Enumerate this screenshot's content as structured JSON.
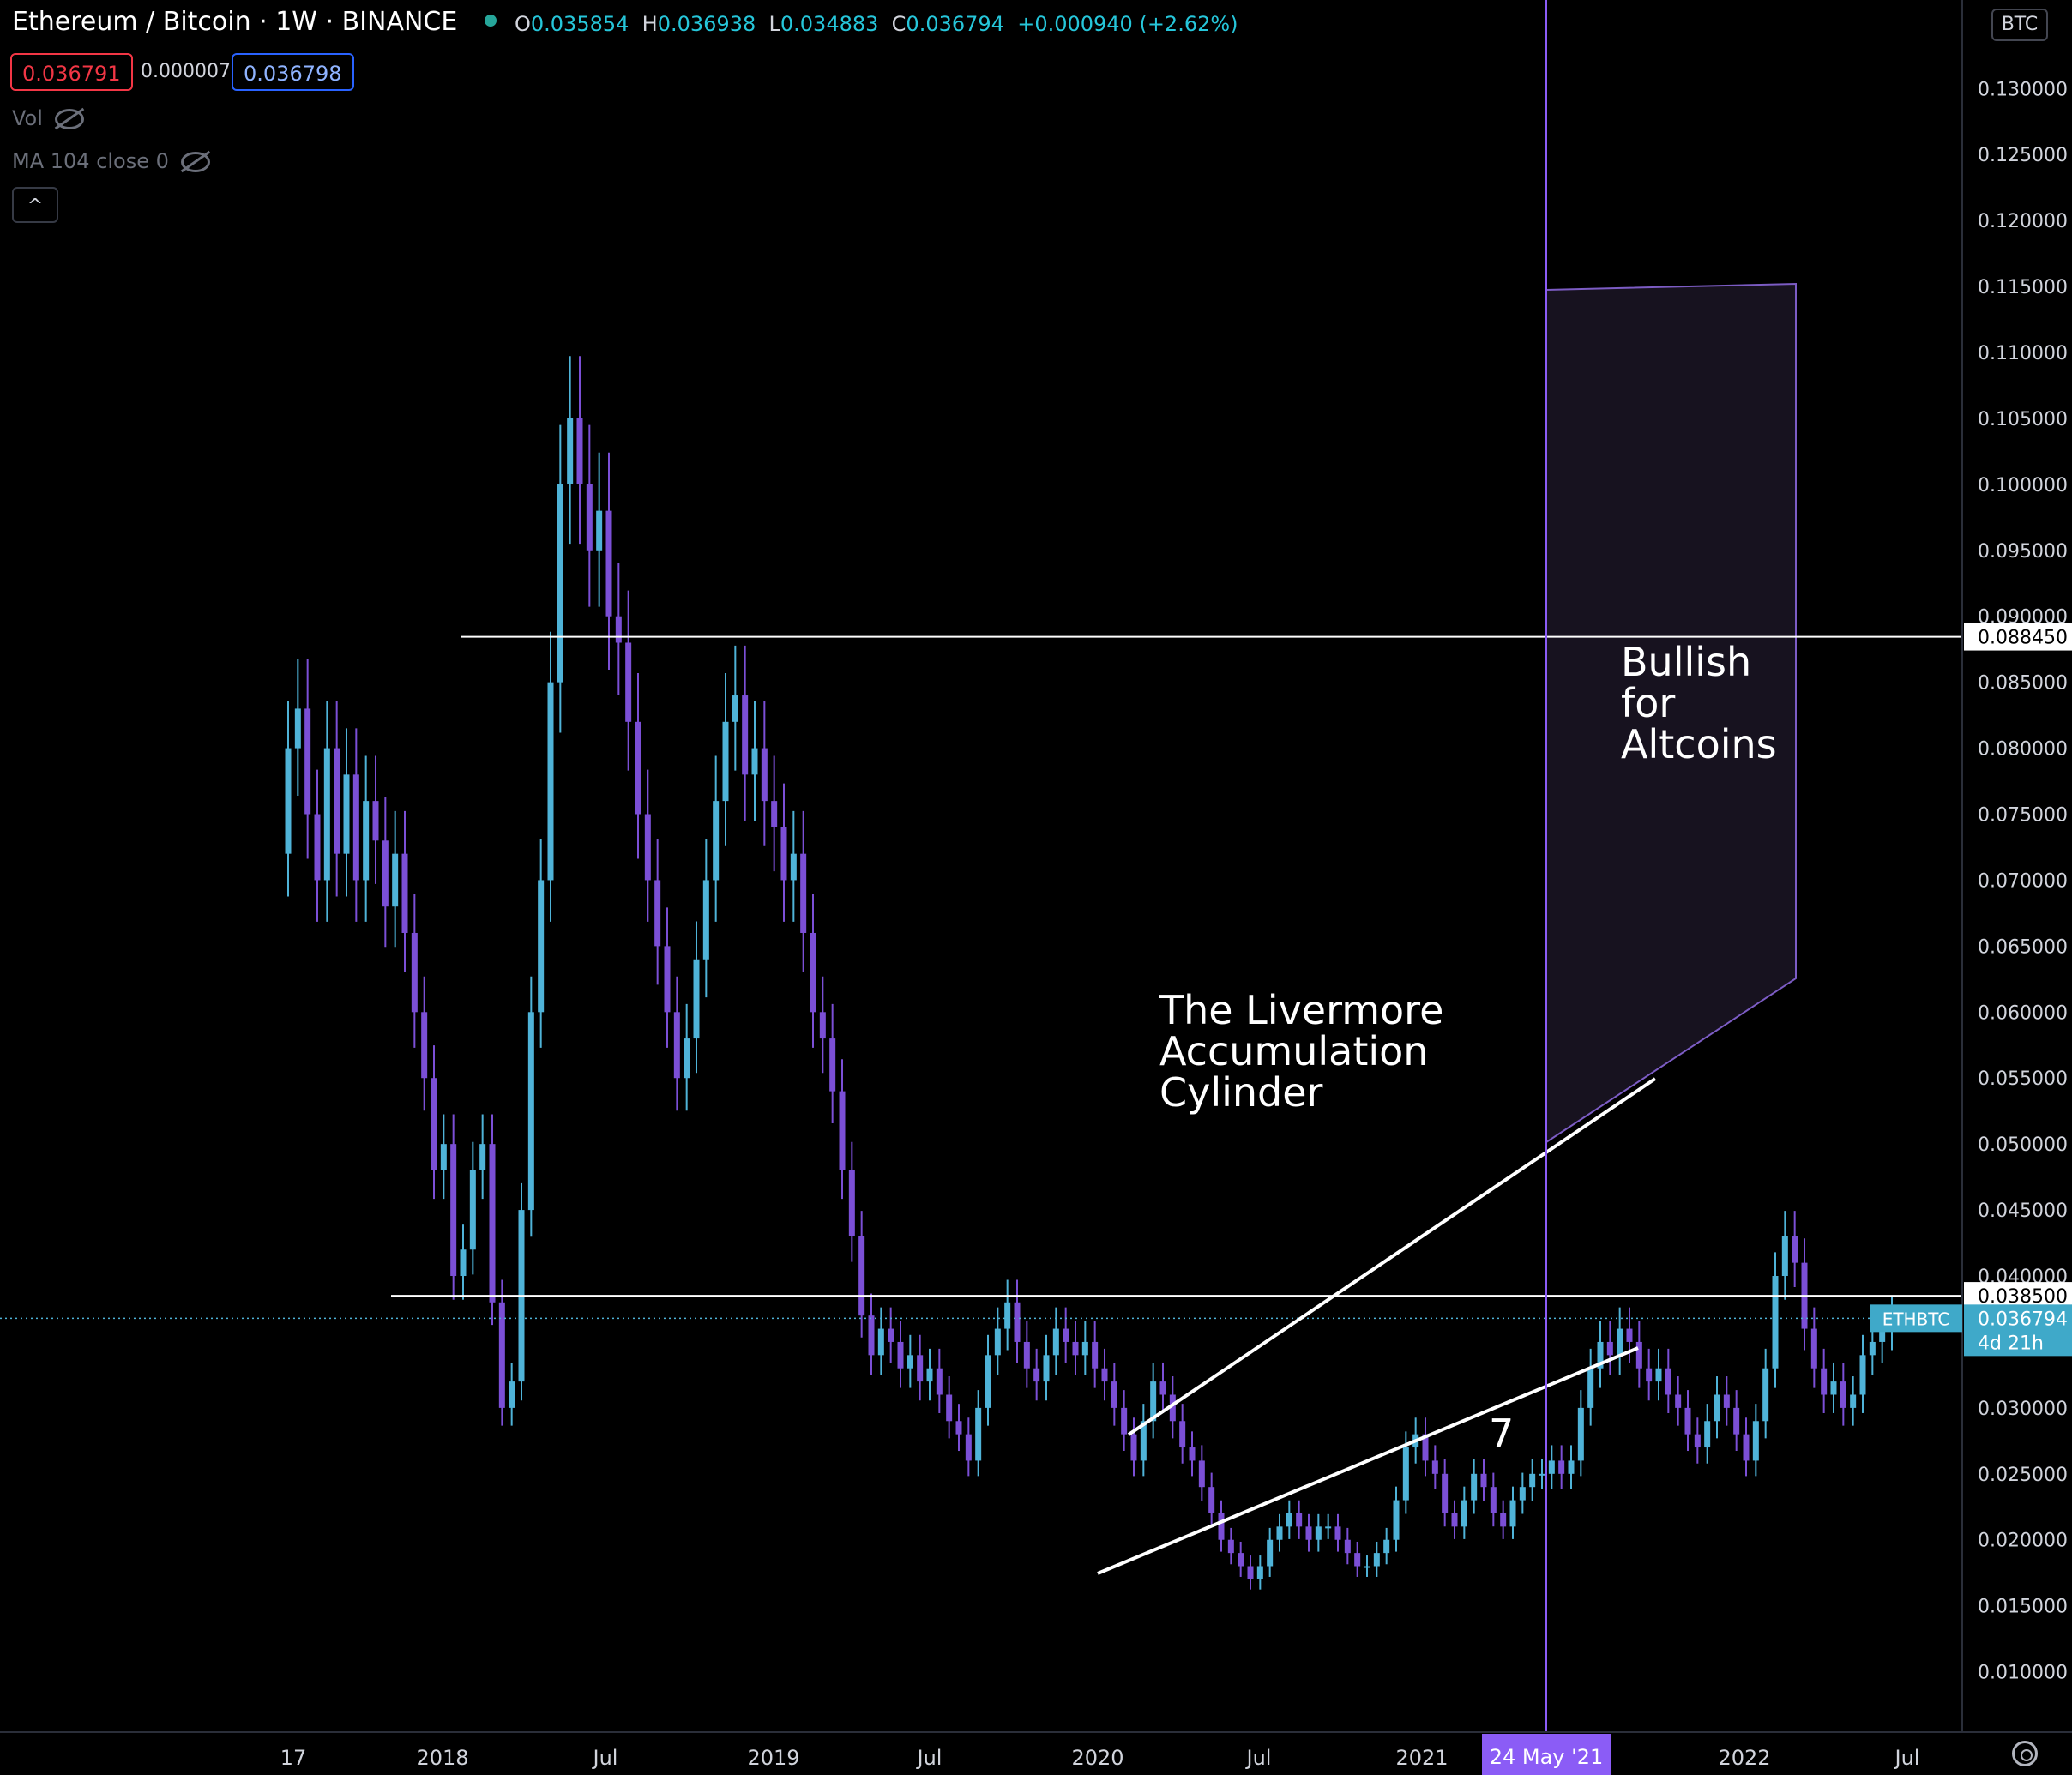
{
  "header": {
    "title": "Ethereum / Bitcoin · 1W · BINANCE",
    "o_label": "O",
    "o_value": "0.035854",
    "h_label": "H",
    "h_value": "0.036938",
    "l_label": "L",
    "l_value": "0.034883",
    "c_label": "C",
    "c_value": "0.036794",
    "change": "+0.000940 (+2.62%)"
  },
  "trade": {
    "sell": "0.036791",
    "spread": "0.000007",
    "buy": "0.036798"
  },
  "indicators": {
    "vol": "Vol",
    "ma": "MA 104 close 0"
  },
  "controls": {
    "collapse": "^",
    "currency": "BTC"
  },
  "annotations": {
    "livermore": [
      "The Livermore",
      "Accumulation",
      "Cylinder"
    ],
    "bullish": [
      "Bullish",
      "for",
      "Altcoins"
    ],
    "count": "7"
  },
  "price_labels": {
    "resistance": "0.088450",
    "support": "0.038500",
    "last": "0.036794",
    "symbol": "ETHBTC",
    "countdown": "4d 21h"
  },
  "colors": {
    "up": "#4fb3d8",
    "down": "#7b4fd6",
    "cursor": "#8b5cf6",
    "projection_fill": "#17121f",
    "projection_stroke": "#7c5cc4"
  },
  "chart_data": {
    "type": "candlestick",
    "title": "Ethereum / Bitcoin · 1W · BINANCE",
    "y_axis": {
      "scale": "linear",
      "range": [
        0.005,
        0.135
      ],
      "ticks": [
        "0.010000",
        "0.015000",
        "0.020000",
        "0.025000",
        "0.030000",
        "0.035000",
        "0.040000",
        "0.045000",
        "0.050000",
        "0.055000",
        "0.060000",
        "0.065000",
        "0.070000",
        "0.075000",
        "0.080000",
        "0.085000",
        "0.090000",
        "0.095000",
        "0.100000",
        "0.105000",
        "0.110000",
        "0.115000",
        "0.120000",
        "0.125000",
        "0.130000"
      ]
    },
    "x_axis": {
      "ticks": [
        "17",
        "2018",
        "Jul",
        "2019",
        "Jul",
        "2020",
        "Jul",
        "2021",
        "Jul",
        "2022",
        "Jul"
      ],
      "cursor_label": "24 May '21"
    },
    "horizontal_levels": [
      0.08845,
      0.0385
    ],
    "last_price": 0.036794,
    "closes": [
      0.08,
      0.083,
      0.075,
      0.07,
      0.08,
      0.072,
      0.078,
      0.07,
      0.076,
      0.073,
      0.068,
      0.072,
      0.066,
      0.06,
      0.055,
      0.048,
      0.05,
      0.04,
      0.042,
      0.048,
      0.05,
      0.038,
      0.03,
      0.032,
      0.045,
      0.06,
      0.07,
      0.085,
      0.1,
      0.105,
      0.1,
      0.095,
      0.098,
      0.09,
      0.088,
      0.082,
      0.075,
      0.07,
      0.065,
      0.06,
      0.055,
      0.058,
      0.064,
      0.07,
      0.076,
      0.082,
      0.084,
      0.078,
      0.08,
      0.076,
      0.074,
      0.07,
      0.072,
      0.066,
      0.06,
      0.058,
      0.054,
      0.048,
      0.043,
      0.037,
      0.034,
      0.036,
      0.035,
      0.033,
      0.034,
      0.032,
      0.033,
      0.031,
      0.029,
      0.028,
      0.026,
      0.03,
      0.034,
      0.036,
      0.038,
      0.035,
      0.033,
      0.032,
      0.034,
      0.036,
      0.035,
      0.034,
      0.035,
      0.033,
      0.032,
      0.03,
      0.028,
      0.026,
      0.029,
      0.032,
      0.031,
      0.029,
      0.027,
      0.026,
      0.024,
      0.022,
      0.02,
      0.019,
      0.018,
      0.017,
      0.018,
      0.02,
      0.021,
      0.022,
      0.021,
      0.02,
      0.021,
      0.021,
      0.02,
      0.019,
      0.018,
      0.018,
      0.019,
      0.02,
      0.023,
      0.027,
      0.028,
      0.026,
      0.025,
      0.022,
      0.021,
      0.023,
      0.025,
      0.024,
      0.022,
      0.021,
      0.023,
      0.024,
      0.025,
      0.025,
      0.026,
      0.025,
      0.026,
      0.03,
      0.033,
      0.035,
      0.034,
      0.036,
      0.035,
      0.033,
      0.032,
      0.033,
      0.031,
      0.03,
      0.028,
      0.027,
      0.029,
      0.031,
      0.03,
      0.028,
      0.026,
      0.029,
      0.033,
      0.04,
      0.043,
      0.041,
      0.036,
      0.033,
      0.031,
      0.032,
      0.03,
      0.031,
      0.034,
      0.035,
      0.036,
      0.0368
    ]
  }
}
